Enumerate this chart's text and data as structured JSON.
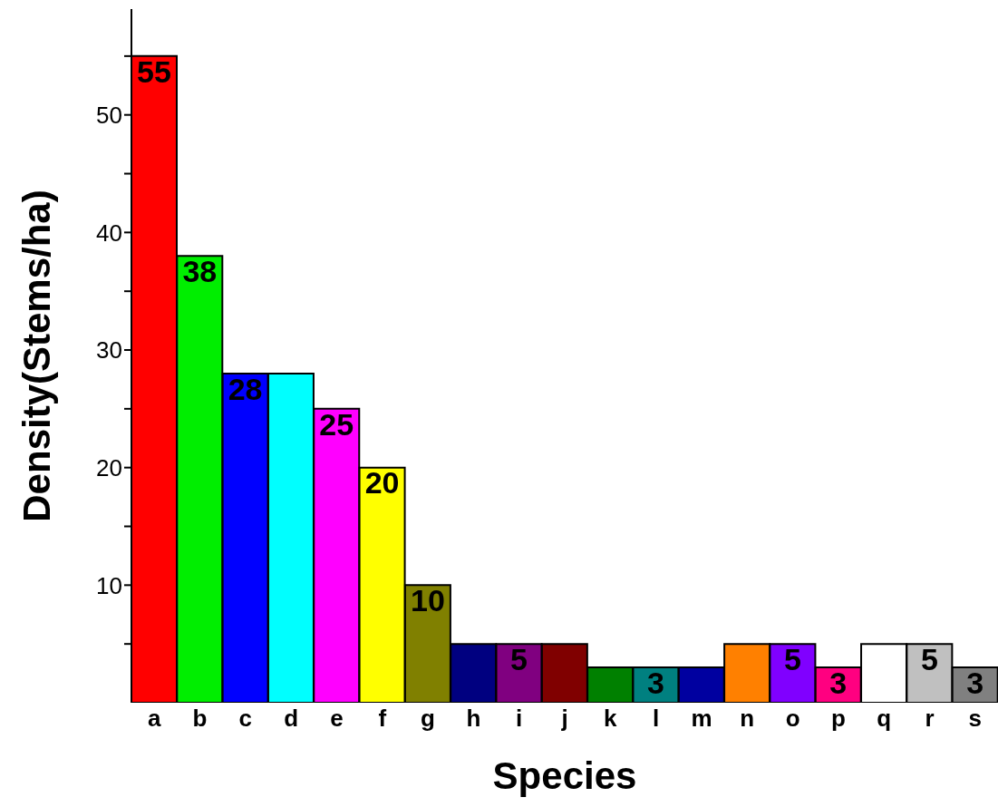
{
  "chart_data": {
    "type": "bar",
    "xlabel": "Species",
    "ylabel": "Density(Stems/ha)",
    "categories": [
      "a",
      "b",
      "c",
      "d",
      "e",
      "f",
      "g",
      "h",
      "i",
      "j",
      "k",
      "l",
      "m",
      "n",
      "o",
      "p",
      "q",
      "r",
      "s"
    ],
    "values": [
      55,
      38,
      28,
      28,
      25,
      20,
      10,
      5,
      5,
      5,
      3,
      3,
      3,
      5,
      5,
      3,
      5,
      5,
      3
    ],
    "colors": [
      "#ff0000",
      "#00ee00",
      "#0000ff",
      "#00ffff",
      "#ff00ff",
      "#ffff00",
      "#808000",
      "#000080",
      "#800080",
      "#800000",
      "#008000",
      "#008080",
      "#0000a0",
      "#ff8000",
      "#8000ff",
      "#ff0080",
      "#ffffff",
      "#c0c0c0",
      "#808080"
    ],
    "value_labels": [
      "55",
      "38",
      "28",
      null,
      "25",
      "20",
      "10",
      null,
      "5",
      null,
      null,
      "3",
      null,
      null,
      "5",
      "3",
      null,
      "5",
      "3"
    ],
    "ylim": [
      0,
      59
    ],
    "yticks": [
      {
        "value": 5,
        "label": null
      },
      10,
      {
        "value": 15,
        "label": null
      },
      20,
      {
        "value": 25,
        "label": null
      },
      30,
      {
        "value": 35,
        "label": null
      },
      40,
      {
        "value": 45,
        "label": null
      },
      50,
      {
        "value": 55,
        "label": null
      }
    ]
  }
}
